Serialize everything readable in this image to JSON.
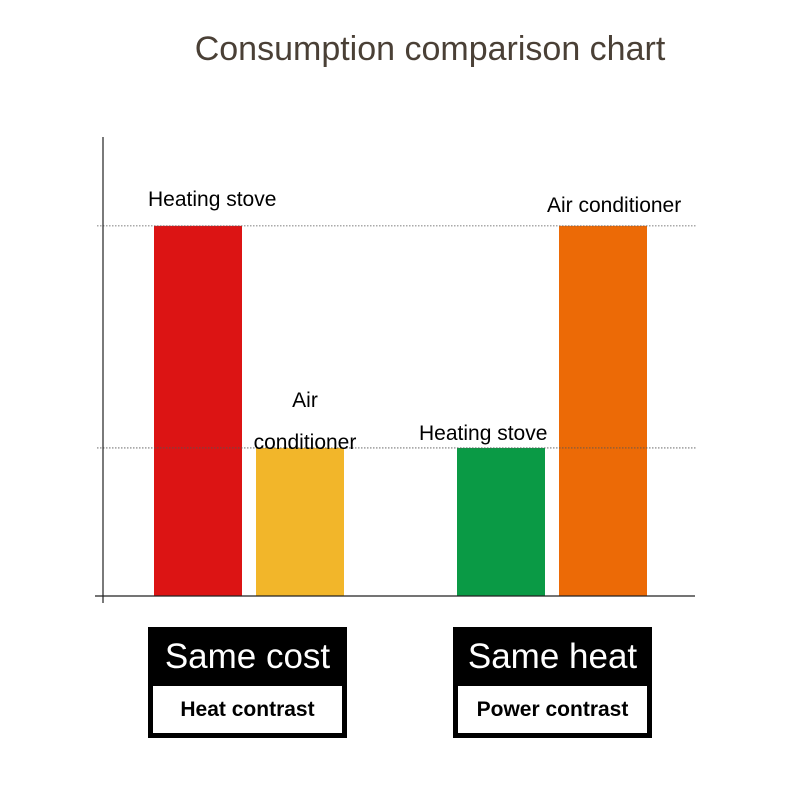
{
  "chart_data": {
    "type": "bar",
    "title": "Consumption comparison chart",
    "xlabel": "",
    "ylabel": "",
    "ylim": [
      0,
      3.1
    ],
    "grid": false,
    "bars": [
      {
        "label": "Heating stove",
        "value": 2.5,
        "color": "#dc1414"
      },
      {
        "label": "Air conditioner",
        "value": 1.0,
        "color": "#f2b62a"
      },
      {
        "label": "Heating stove",
        "value": 1.0,
        "color": "#0a9a45"
      },
      {
        "label": "Air conditioner",
        "value": 2.5,
        "color": "#ec6a06"
      }
    ],
    "groups": [
      {
        "heading": "Same cost",
        "subheading": "Heat contrast"
      },
      {
        "heading": "Same heat",
        "subheading": "Power contrast"
      }
    ],
    "reference_lines": [
      2.5,
      1.0
    ]
  }
}
